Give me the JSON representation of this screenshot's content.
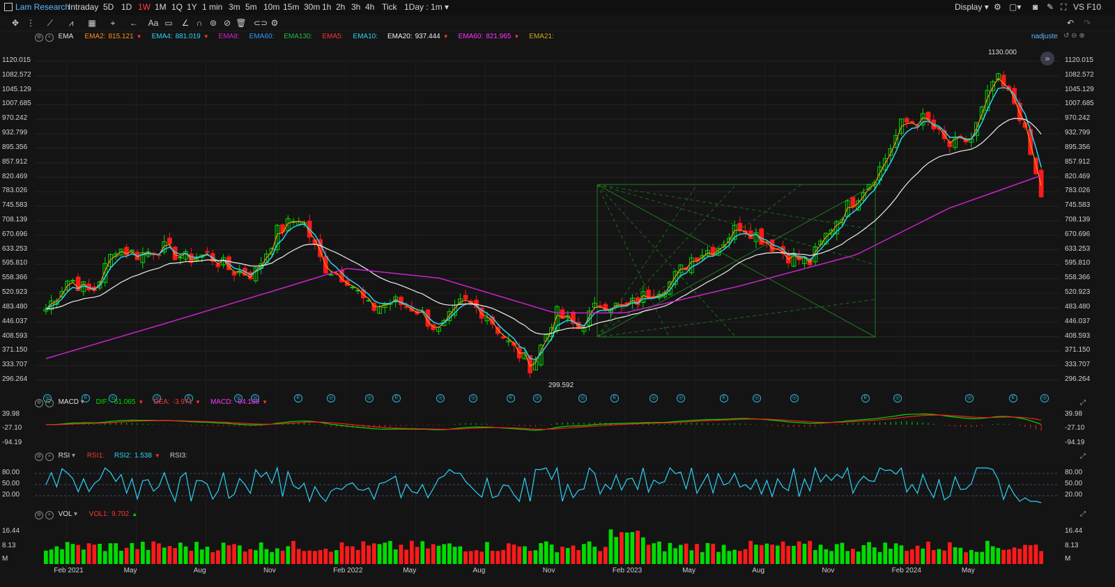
{
  "topbar": {
    "symbol": "Lam Research",
    "tabs": [
      "Intraday",
      "5D",
      "1D",
      "1W",
      "1M",
      "1Q",
      "1Y",
      "1 min",
      "3m",
      "5m",
      "10m",
      "15m",
      "30m",
      "1h",
      "2h",
      "3h",
      "4h",
      "Tick"
    ],
    "active_tab": "1W",
    "timeframe": "1Day : 1m",
    "display_label": "Display",
    "right_text": "VS F10"
  },
  "colors": {
    "up": "#00dd00",
    "down": "#ff1a1a",
    "ema_short": "#ff8c1a",
    "ema_cyan": "#2bd3f5",
    "ema_white": "#f0f0f0",
    "ema_magenta": "#cc22cc",
    "accent": "#ff4040"
  },
  "main_legend": {
    "name": "EMA",
    "items": [
      {
        "label": "EMA2:",
        "value": "815.121",
        "color": "#ff8c1a",
        "arrow": true
      },
      {
        "label": "EMA4:",
        "value": "881.019",
        "color": "#2bd3f5",
        "arrow": true
      },
      {
        "label": "EMA8:",
        "value": "",
        "color": "#cc22cc",
        "arrow": false
      },
      {
        "label": "EMA60:",
        "value": "",
        "color": "#3399ff",
        "arrow": false
      },
      {
        "label": "EMA130:",
        "value": "",
        "color": "#22bb44",
        "arrow": false
      },
      {
        "label": "EMA5:",
        "value": "",
        "color": "#ff3333",
        "arrow": false
      },
      {
        "label": "EMA10:",
        "value": "",
        "color": "#2bd3f5",
        "arrow": false
      },
      {
        "label": "EMA20:",
        "value": "937.444",
        "color": "#f0f0f0",
        "arrow": true
      },
      {
        "label": "EMA60:",
        "value": "821.965",
        "color": "#ff33ff",
        "arrow": true
      },
      {
        "label": "EMA21:",
        "value": "",
        "color": "#ccaa22",
        "arrow": false
      }
    ],
    "adjust_label": "nadjuste"
  },
  "price_axis": [
    "1120.015",
    "1082.572",
    "1045.129",
    "1007.685",
    "970.242",
    "932.799",
    "895.356",
    "857.912",
    "820.469",
    "783.026",
    "745.583",
    "708.139",
    "670.696",
    "633.253",
    "595.810",
    "558.366",
    "520.923",
    "483.480",
    "446.037",
    "408.593",
    "371.150",
    "333.707",
    "296.264"
  ],
  "price_annotations": {
    "high": "1130.000",
    "low": "299.592"
  },
  "x_axis": [
    "Feb 2021",
    "May",
    "Aug",
    "Nov",
    "Feb 2022",
    "May",
    "Aug",
    "Nov",
    "Feb 2023",
    "May",
    "Aug",
    "Nov",
    "Feb 2024",
    "May"
  ],
  "macd_legend": {
    "name": "MACD",
    "items": [
      {
        "label": "DIF:",
        "value": "-51.065",
        "color": "#00dd00"
      },
      {
        "label": "DEA:",
        "value": "-3.971",
        "color": "#ff3333"
      },
      {
        "label": "MACD:",
        "value": "-94.189",
        "color": "#ff33ff"
      }
    ]
  },
  "macd_axis": [
    "39.98",
    "-27.10",
    "-94.19"
  ],
  "rsi_legend": {
    "name": "RSI",
    "items": [
      {
        "label": "RSI1:",
        "value": "",
        "color": "#ff3333"
      },
      {
        "label": "RSI2:",
        "value": "1.538",
        "color": "#2bd3f5"
      },
      {
        "label": "RSI3:",
        "value": "",
        "color": "#cccccc"
      }
    ]
  },
  "rsi_axis": [
    "80.00",
    "50.00",
    "20.00"
  ],
  "vol_legend": {
    "name": "VOL",
    "items": [
      {
        "label": "VOL1:",
        "value": "9.702",
        "color": "#ff3333"
      }
    ]
  },
  "vol_axis": [
    "16.44",
    "8.13",
    "M"
  ],
  "chart_data": {
    "type": "candlestick",
    "symbol": "Lam Research",
    "interval": "1W",
    "high": 1130.0,
    "low": 299.592,
    "anchors": [
      {
        "date": "2021-01",
        "close": 480
      },
      {
        "date": "2021-02",
        "close": 560
      },
      {
        "date": "2021-03",
        "close": 520
      },
      {
        "date": "2021-04",
        "close": 640
      },
      {
        "date": "2021-05",
        "close": 620
      },
      {
        "date": "2021-06",
        "close": 640
      },
      {
        "date": "2021-07",
        "close": 610
      },
      {
        "date": "2021-08",
        "close": 620
      },
      {
        "date": "2021-09",
        "close": 580
      },
      {
        "date": "2021-10",
        "close": 570
      },
      {
        "date": "2021-11",
        "close": 680
      },
      {
        "date": "2021-12",
        "close": 720
      },
      {
        "date": "2022-01",
        "close": 590
      },
      {
        "date": "2022-02",
        "close": 560
      },
      {
        "date": "2022-03",
        "close": 480
      },
      {
        "date": "2022-04",
        "close": 500
      },
      {
        "date": "2022-05",
        "close": 480
      },
      {
        "date": "2022-06",
        "close": 420
      },
      {
        "date": "2022-07",
        "close": 500
      },
      {
        "date": "2022-08",
        "close": 470
      },
      {
        "date": "2022-09",
        "close": 390
      },
      {
        "date": "2022-10",
        "close": 330
      },
      {
        "date": "2022-11",
        "close": 470
      },
      {
        "date": "2022-12",
        "close": 430
      },
      {
        "date": "2023-01",
        "close": 500
      },
      {
        "date": "2023-02",
        "close": 480
      },
      {
        "date": "2023-03",
        "close": 520
      },
      {
        "date": "2023-04",
        "close": 550
      },
      {
        "date": "2023-05",
        "close": 620
      },
      {
        "date": "2023-06",
        "close": 640
      },
      {
        "date": "2023-07",
        "close": 700
      },
      {
        "date": "2023-08",
        "close": 660
      },
      {
        "date": "2023-09",
        "close": 620
      },
      {
        "date": "2023-10",
        "close": 600
      },
      {
        "date": "2023-11",
        "close": 700
      },
      {
        "date": "2023-12",
        "close": 770
      },
      {
        "date": "2024-01",
        "close": 840
      },
      {
        "date": "2024-02",
        "close": 960
      },
      {
        "date": "2024-03",
        "close": 970
      },
      {
        "date": "2024-04",
        "close": 900
      },
      {
        "date": "2024-05",
        "close": 920
      },
      {
        "date": "2024-06",
        "close": 1080
      },
      {
        "date": "2024-07",
        "close": 1000
      },
      {
        "date": "2024-08",
        "close": 770
      }
    ],
    "ema_magenta_anchors": [
      {
        "date": "2021-01",
        "value": 352
      },
      {
        "date": "2021-06",
        "value": 440
      },
      {
        "date": "2021-11",
        "value": 530
      },
      {
        "date": "2022-02",
        "value": 585
      },
      {
        "date": "2022-06",
        "value": 560
      },
      {
        "date": "2022-11",
        "value": 470
      },
      {
        "date": "2023-02",
        "value": 470
      },
      {
        "date": "2023-07",
        "value": 540
      },
      {
        "date": "2023-12",
        "value": 620
      },
      {
        "date": "2024-04",
        "value": 740
      },
      {
        "date": "2024-08",
        "value": 825
      }
    ]
  }
}
